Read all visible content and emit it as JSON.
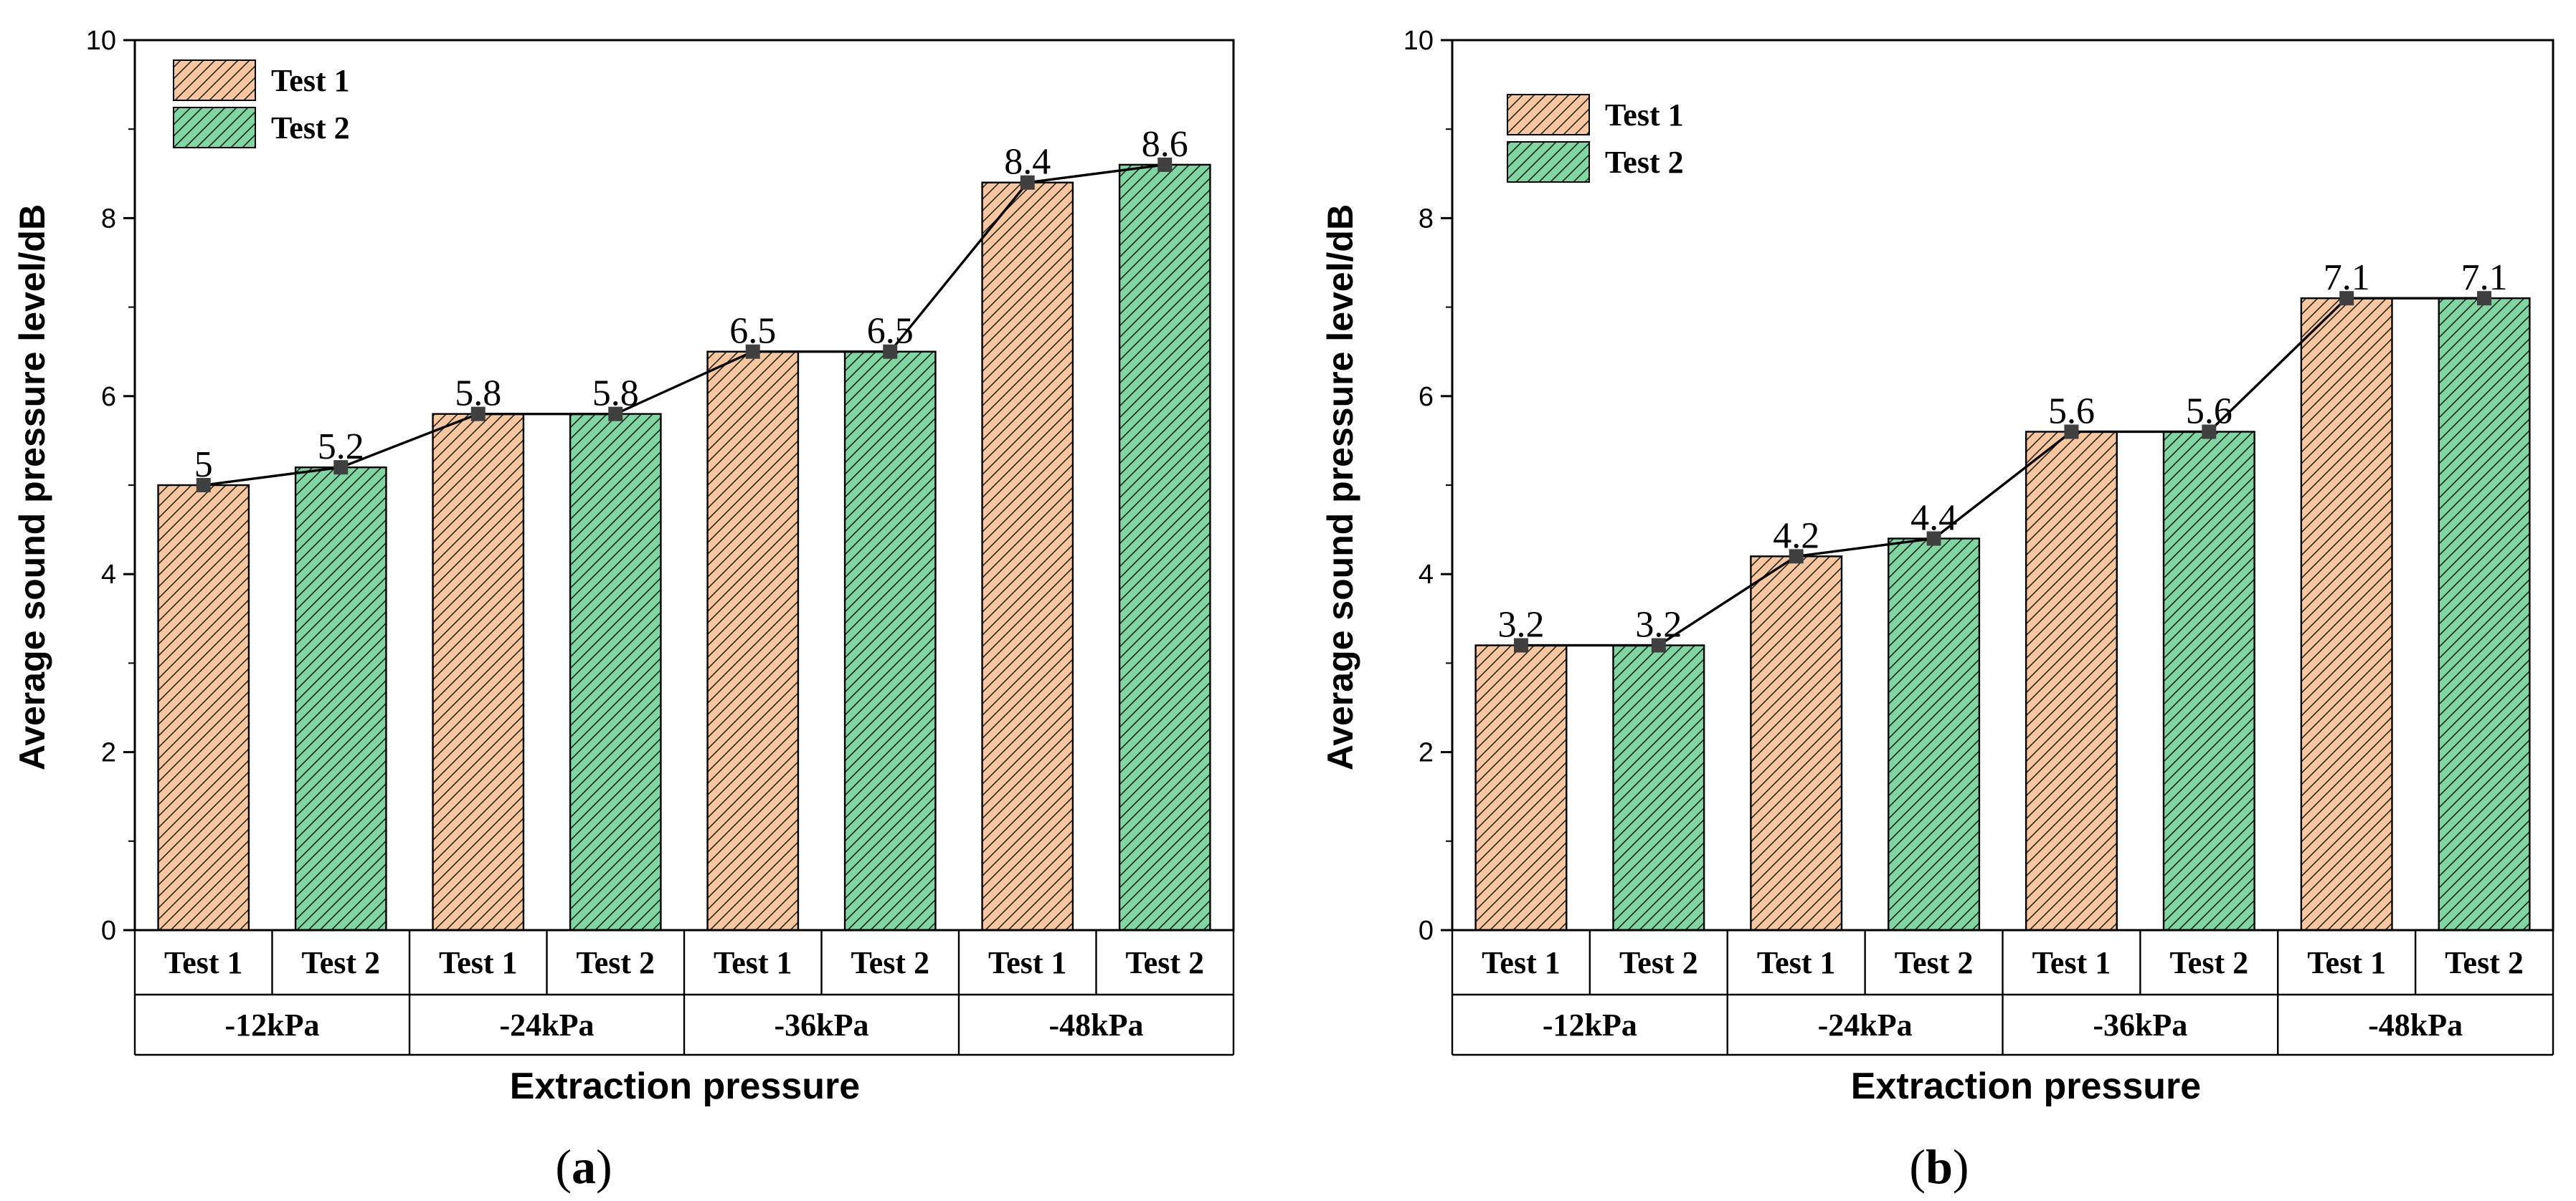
{
  "figure": {
    "panel_labels": [
      "(a)",
      "(b)"
    ]
  },
  "chart_data": [
    {
      "type": "bar",
      "panel": "a",
      "panel_open": "(",
      "panel_letter": "a",
      "panel_close": ")",
      "ylabel": "Average sound pressure level/dB",
      "xlabel": "Extraction pressure",
      "ylim": [
        0,
        10
      ],
      "yticks": [
        0,
        2,
        4,
        6,
        8,
        10
      ],
      "groups": [
        "-12kPa",
        "-24kPa",
        "-36kPa",
        "-48kPa"
      ],
      "bar_labels": [
        "Test 1",
        "Test 2",
        "Test 1",
        "Test 2",
        "Test 1",
        "Test 2",
        "Test 1",
        "Test 2"
      ],
      "series": [
        {
          "name": "Test 1",
          "color": "#f8c79f",
          "values": [
            5,
            5.8,
            6.5,
            8.4
          ],
          "value_labels": [
            "5",
            "5.8",
            "6.5",
            "8.4"
          ]
        },
        {
          "name": "Test 2",
          "color": "#7fd6a0",
          "values": [
            5.2,
            5.8,
            6.5,
            8.6
          ],
          "value_labels": [
            "5.2",
            "5.8",
            "6.5",
            "8.6"
          ]
        }
      ],
      "legend": [
        "Test 1",
        "Test 2"
      ],
      "line_color": "#000000",
      "marker_color": "#404040"
    },
    {
      "type": "bar",
      "panel": "b",
      "panel_open": "(",
      "panel_letter": "b",
      "panel_close": ")",
      "ylabel": "Average sound pressure level/dB",
      "xlabel": "Extraction pressure",
      "ylim": [
        0,
        10
      ],
      "yticks": [
        0,
        2,
        4,
        6,
        8,
        10
      ],
      "groups": [
        "-12kPa",
        "-24kPa",
        "-36kPa",
        "-48kPa"
      ],
      "bar_labels": [
        "Test 1",
        "Test 2",
        "Test 1",
        "Test 2",
        "Test 1",
        "Test 2",
        "Test 1",
        "Test 2"
      ],
      "series": [
        {
          "name": "Test 1",
          "color": "#f8c79f",
          "values": [
            3.2,
            4.2,
            5.6,
            7.1
          ],
          "value_labels": [
            "3.2",
            "4.2",
            "5.6",
            "7.1"
          ]
        },
        {
          "name": "Test 2",
          "color": "#7fd6a0",
          "values": [
            3.2,
            4.4,
            5.6,
            7.1
          ],
          "value_labels": [
            "3.2",
            "4.4",
            "5.6",
            "7.1"
          ]
        }
      ],
      "legend": [
        "Test 1",
        "Test 2"
      ],
      "line_color": "#000000",
      "marker_color": "#404040"
    }
  ]
}
